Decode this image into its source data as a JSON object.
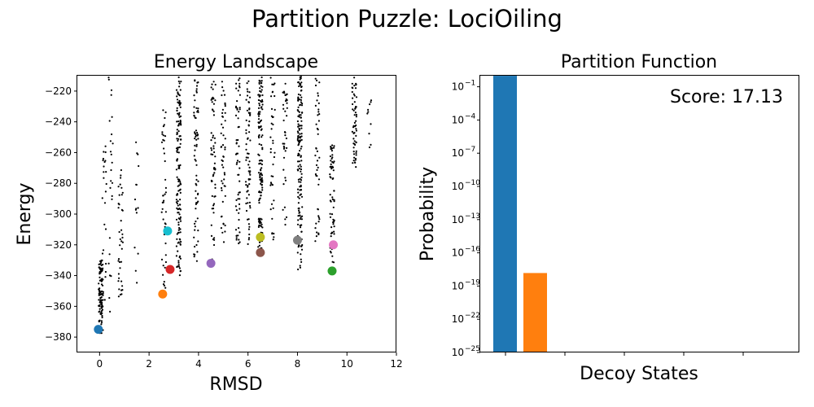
{
  "figure": {
    "title": "Partition Puzzle: LociOiling"
  },
  "chart_data": [
    {
      "type": "scatter",
      "title": "Energy Landscape",
      "xlabel": "RMSD",
      "ylabel": "Energy",
      "xlim": [
        -0.9,
        12
      ],
      "ylim": [
        -390,
        -210
      ],
      "xticks": [
        0,
        2,
        4,
        6,
        8,
        10,
        12
      ],
      "yticks": [
        -380,
        -360,
        -340,
        -320,
        -300,
        -280,
        -260,
        -240,
        -220
      ],
      "grid": false,
      "background_points": {
        "color": "#000000",
        "clusters": [
          {
            "x": 0.05,
            "y_range": [
              -378,
              -330
            ],
            "n": 110
          },
          {
            "x": 0.2,
            "y_range": [
              -370,
              -255
            ],
            "n": 25
          },
          {
            "x": 0.45,
            "y_range": [
              -365,
              -210
            ],
            "n": 25
          },
          {
            "x": 0.85,
            "y_range": [
              -360,
              -270
            ],
            "n": 40
          },
          {
            "x": 1.5,
            "y_range": [
              -350,
              -250
            ],
            "n": 15
          },
          {
            "x": 2.6,
            "y_range": [
              -352,
              -230
            ],
            "n": 45
          },
          {
            "x": 3.2,
            "y_range": [
              -340,
              -210
            ],
            "n": 150
          },
          {
            "x": 3.9,
            "y_range": [
              -335,
              -210
            ],
            "n": 70
          },
          {
            "x": 4.6,
            "y_range": [
              -330,
              -210
            ],
            "n": 60
          },
          {
            "x": 5.0,
            "y_range": [
              -320,
              -210
            ],
            "n": 50
          },
          {
            "x": 5.6,
            "y_range": [
              -320,
              -210
            ],
            "n": 60
          },
          {
            "x": 6.0,
            "y_range": [
              -320,
              -210
            ],
            "n": 70
          },
          {
            "x": 6.5,
            "y_range": [
              -325,
              -210
            ],
            "n": 140
          },
          {
            "x": 7.0,
            "y_range": [
              -320,
              -210
            ],
            "n": 40
          },
          {
            "x": 7.5,
            "y_range": [
              -310,
              -210
            ],
            "n": 40
          },
          {
            "x": 8.1,
            "y_range": [
              -337,
              -210
            ],
            "n": 170
          },
          {
            "x": 8.8,
            "y_range": [
              -320,
              -210
            ],
            "n": 45
          },
          {
            "x": 9.4,
            "y_range": [
              -337,
              -255
            ],
            "n": 70
          },
          {
            "x": 10.3,
            "y_range": [
              -275,
              -210
            ],
            "n": 60
          },
          {
            "x": 10.9,
            "y_range": [
              -262,
              -225
            ],
            "n": 10
          }
        ]
      },
      "highlighted": [
        {
          "x": -0.05,
          "y": -375,
          "color": "#1f77b4"
        },
        {
          "x": 2.55,
          "y": -352,
          "color": "#ff7f0e"
        },
        {
          "x": 2.75,
          "y": -311,
          "color": "#17becf"
        },
        {
          "x": 2.85,
          "y": -336,
          "color": "#d62728"
        },
        {
          "x": 4.5,
          "y": -332,
          "color": "#9467bd"
        },
        {
          "x": 6.5,
          "y": -315,
          "color": "#bcbd22"
        },
        {
          "x": 6.5,
          "y": -325,
          "color": "#8c564b"
        },
        {
          "x": 8.0,
          "y": -317,
          "color": "#7f7f7f"
        },
        {
          "x": 9.45,
          "y": -320,
          "color": "#e377c2"
        },
        {
          "x": 9.4,
          "y": -337,
          "color": "#2ca02c"
        }
      ]
    },
    {
      "type": "bar",
      "title": "Partition Function",
      "xlabel": "Decoy States",
      "ylabel": "Probability",
      "yscale": "log",
      "ylim": [
        1e-25,
        1
      ],
      "ytick_exponents": [
        -25,
        -22,
        -19,
        -16,
        -13,
        -10,
        -7,
        -4,
        -1
      ],
      "xtick_count": 5,
      "values": [
        0.99,
        1.5e-18
      ],
      "colors": [
        "#1f77b4",
        "#ff7f0e"
      ],
      "annotation": "Score: 17.13",
      "annotation_placement": "top-right"
    }
  ]
}
